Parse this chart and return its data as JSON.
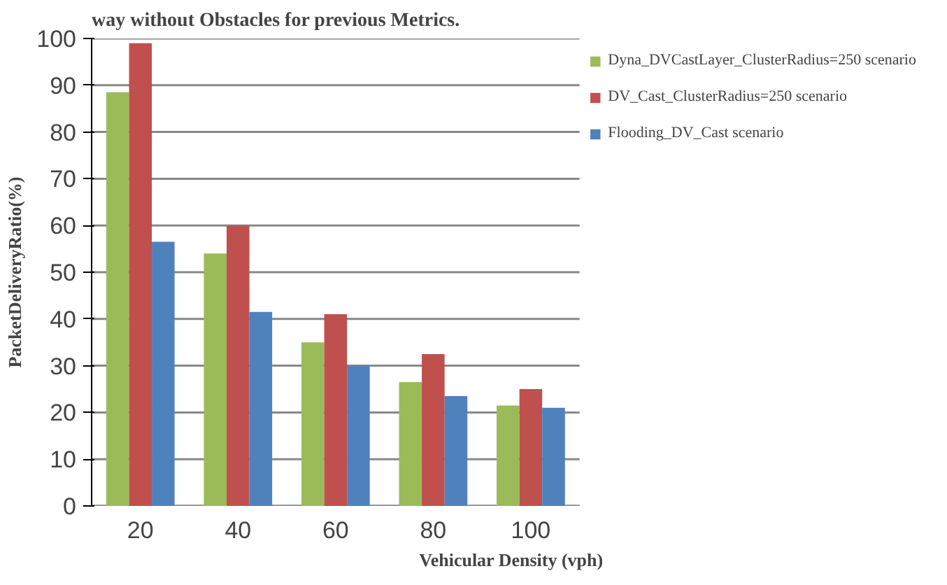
{
  "chart_data": {
    "type": "bar",
    "annotations": [
      "way without Obstacles for previous Metrics."
    ],
    "xlabel": "Vehicular Density (vph)",
    "ylabel": "PacketDeliveryRatio(%)",
    "categories": [
      "20",
      "40",
      "60",
      "80",
      "100"
    ],
    "series": [
      {
        "name": "Dyna_DVCastLayer_ClusterRadius=250 scenario",
        "color": "#9bbb59",
        "values": [
          88.5,
          54,
          35,
          26.5,
          21.5
        ]
      },
      {
        "name": "DV_Cast_ClusterRadius=250 scenario",
        "color": "#c0504d",
        "values": [
          99,
          60,
          41,
          32.5,
          25
        ]
      },
      {
        "name": "Flooding_DV_Cast scenario",
        "color": "#4f81bd",
        "values": [
          56.5,
          41.5,
          30,
          23.5,
          21
        ]
      }
    ],
    "ylim": [
      0,
      100
    ],
    "yticks": [
      0,
      10,
      20,
      30,
      40,
      50,
      60,
      70,
      80,
      90,
      100
    ],
    "grid": "y",
    "legend": "right"
  }
}
